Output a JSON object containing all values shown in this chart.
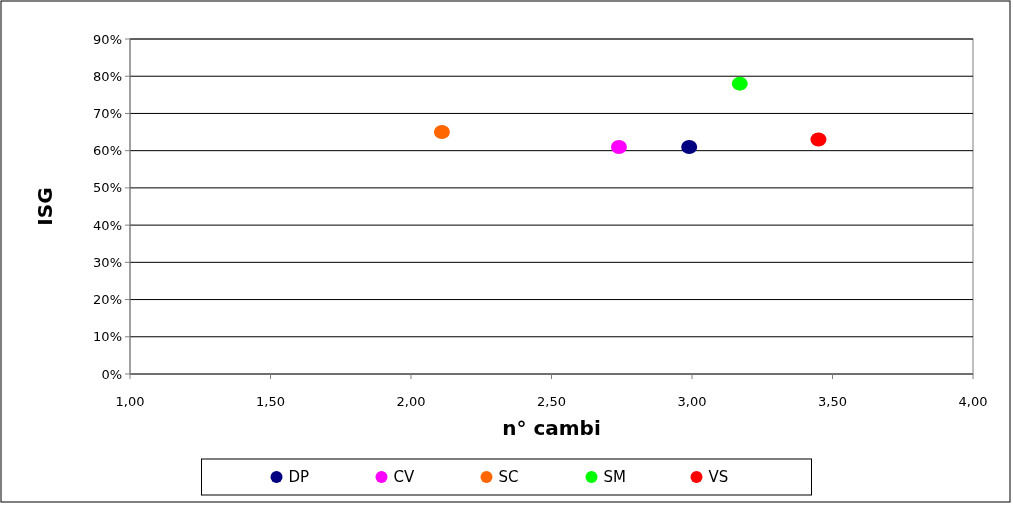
{
  "chart_data": {
    "type": "scatter",
    "xlabel": "n° cambi",
    "ylabel": "ISG",
    "series": [
      {
        "name": "DP",
        "color": "#000080",
        "x": [
          2.99
        ],
        "values": [
          61
        ]
      },
      {
        "name": "CV",
        "color": "#ff00ff",
        "x": [
          2.74
        ],
        "values": [
          61
        ]
      },
      {
        "name": "SC",
        "color": "#ff6600",
        "x": [
          2.11
        ],
        "values": [
          65
        ]
      },
      {
        "name": "SM",
        "color": "#00ff00",
        "x": [
          3.17
        ],
        "values": [
          78
        ]
      },
      {
        "name": "VS",
        "color": "#ff0000",
        "x": [
          3.45
        ],
        "values": [
          63
        ]
      }
    ],
    "xlim": [
      1,
      4
    ],
    "xticks": [
      {
        "value": 1,
        "label": "1,00"
      },
      {
        "value": 1.5,
        "label": "1,50"
      },
      {
        "value": 2,
        "label": "2,00"
      },
      {
        "value": 2.5,
        "label": "2,50"
      },
      {
        "value": 3,
        "label": "3,00"
      },
      {
        "value": 3.5,
        "label": "3,50"
      },
      {
        "value": 4,
        "label": "4,00"
      }
    ],
    "ylim": [
      0,
      90
    ],
    "yticks": [
      {
        "value": 0,
        "label": "0%"
      },
      {
        "value": 10,
        "label": "10%"
      },
      {
        "value": 20,
        "label": "20%"
      },
      {
        "value": 30,
        "label": "30%"
      },
      {
        "value": 40,
        "label": "40%"
      },
      {
        "value": 50,
        "label": "50%"
      },
      {
        "value": 60,
        "label": "60%"
      },
      {
        "value": 70,
        "label": "70%"
      },
      {
        "value": 80,
        "label": "80%"
      },
      {
        "value": 90,
        "label": "90%"
      }
    ],
    "grid": "y",
    "legend": "bottom",
    "marker": "circle"
  }
}
